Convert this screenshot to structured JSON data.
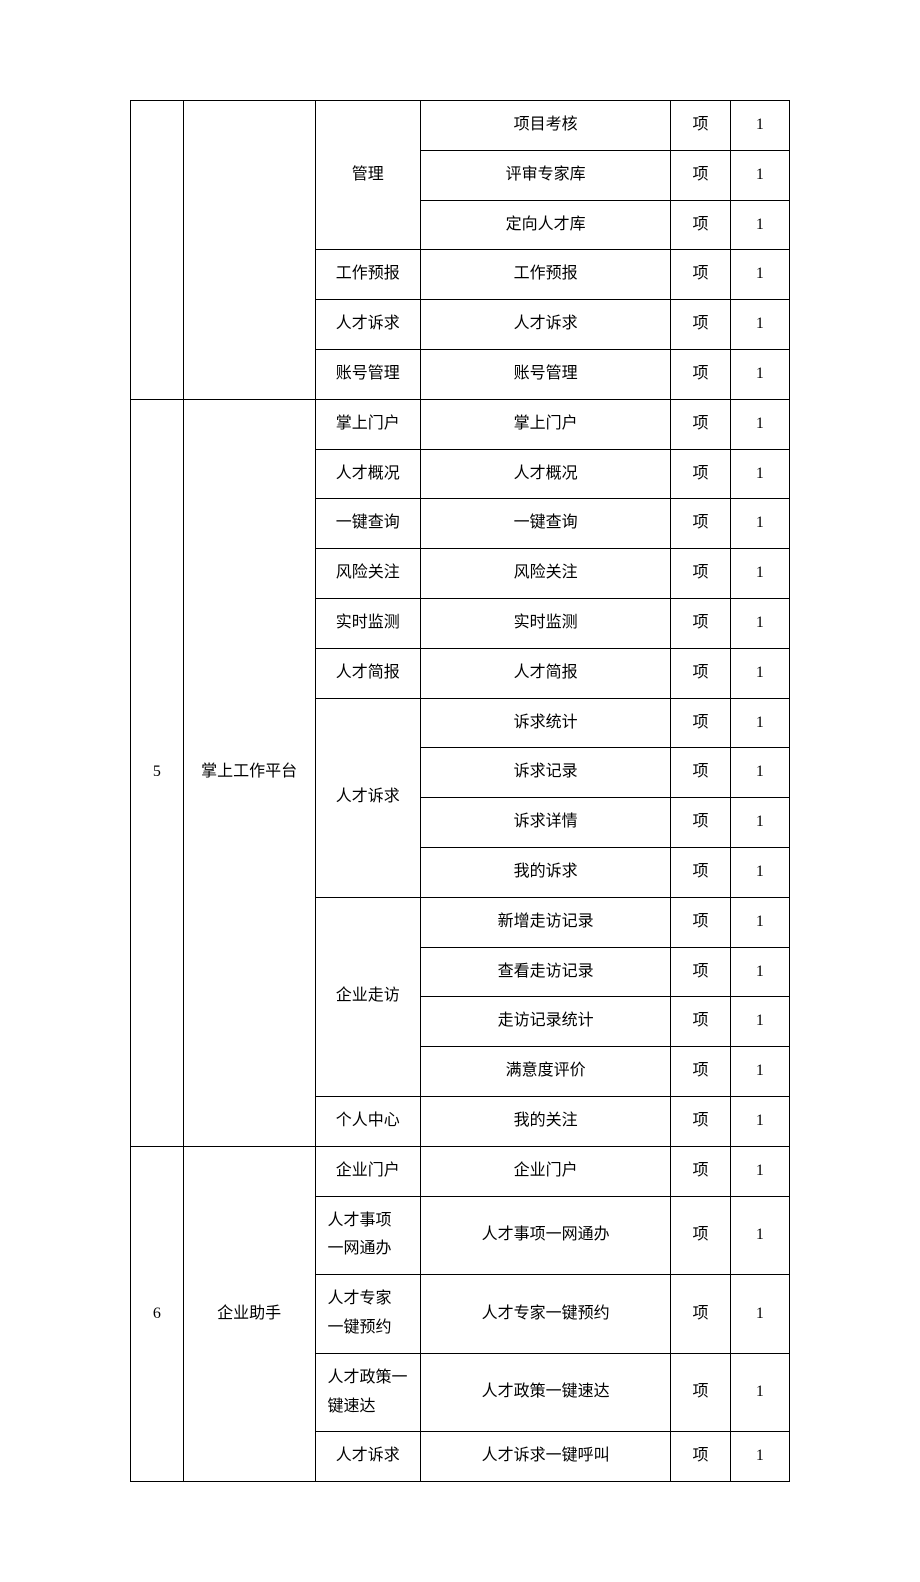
{
  "table": {
    "columns": {
      "num_width": "8%",
      "section_width": "20%",
      "module_width": "16%",
      "item_width": "38%",
      "unit_width": "9%",
      "qty_width": "9%"
    },
    "unit_label": "项",
    "groups": [
      {
        "num": "",
        "section": "",
        "modules": [
          {
            "name": "管理",
            "first_row_no_top": true,
            "items": [
              "项目考核",
              "评审专家库",
              "定向人才库"
            ]
          },
          {
            "name": "工作预报",
            "items": [
              "工作预报"
            ]
          },
          {
            "name": "人才诉求",
            "items": [
              "人才诉求"
            ]
          },
          {
            "name": "账号管理",
            "items": [
              "账号管理"
            ]
          }
        ]
      },
      {
        "num": "5",
        "section": "掌上工作平台",
        "modules": [
          {
            "name": "掌上门户",
            "items": [
              "掌上门户"
            ]
          },
          {
            "name": "人才概况",
            "items": [
              "人才概况"
            ]
          },
          {
            "name": "一键查询",
            "items": [
              "一键查询"
            ]
          },
          {
            "name": "风险关注",
            "items": [
              "风险关注"
            ]
          },
          {
            "name": "实时监测",
            "items": [
              "实时监测"
            ]
          },
          {
            "name": "人才简报",
            "items": [
              "人才简报"
            ]
          },
          {
            "name": "人才诉求",
            "items": [
              "诉求统计",
              "诉求记录",
              "诉求详情",
              "我的诉求"
            ]
          },
          {
            "name": "企业走访",
            "items": [
              "新增走访记录",
              "查看走访记录",
              "走访记录统计",
              "满意度评价"
            ]
          },
          {
            "name": "个人中心",
            "items": [
              "我的关注"
            ]
          }
        ]
      },
      {
        "num": "6",
        "section": "企业助手",
        "modules": [
          {
            "name": "企业门户",
            "items": [
              "企业门户"
            ]
          },
          {
            "name": "人才事项\n一网通办",
            "two_line": true,
            "items": [
              "人才事项一网通办"
            ]
          },
          {
            "name": "人才专家\n一键预约",
            "two_line": true,
            "items": [
              "人才专家一键预约"
            ]
          },
          {
            "name": "人才政策一\n键速达",
            "two_line": true,
            "items": [
              "人才政策一键速达"
            ]
          },
          {
            "name": "人才诉求",
            "items": [
              "人才诉求一键呼叫"
            ]
          }
        ]
      }
    ],
    "qty_default": "1"
  },
  "style": {
    "font_family": "SimSun",
    "font_size_pt": 12,
    "text_color": "#000000",
    "border_color": "#000000",
    "background_color": "#ffffff"
  }
}
